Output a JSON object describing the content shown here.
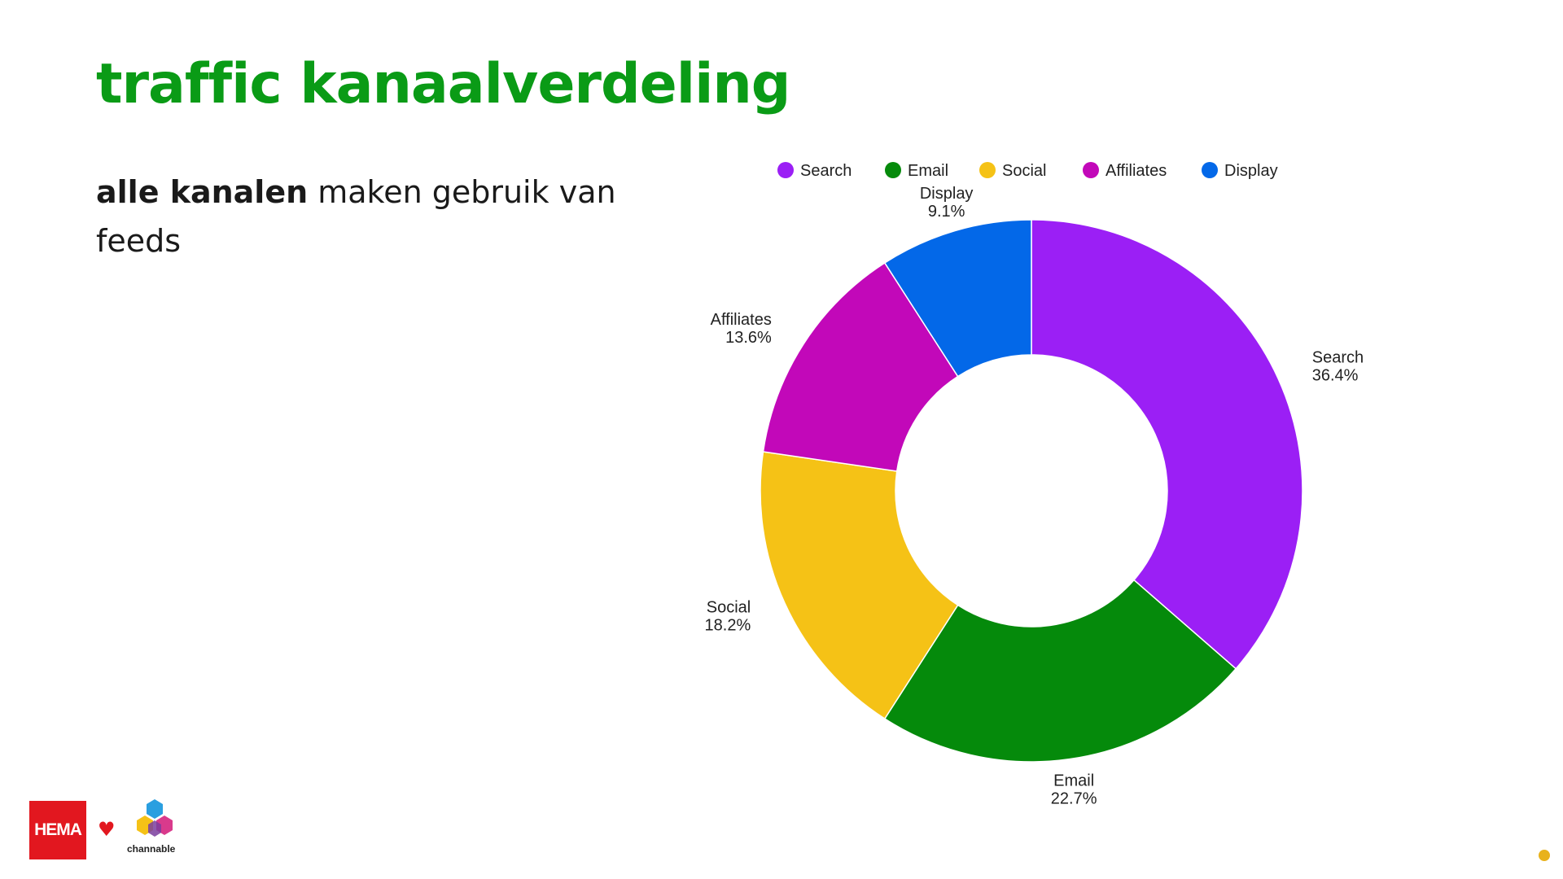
{
  "slide": {
    "title": "traffic kanaalverdeling",
    "subtitle_bold": "alle kanalen",
    "subtitle_rest": " maken gebruik van feeds"
  },
  "logos": {
    "hema": "HEMA",
    "heart": "♥",
    "channable": "channable"
  },
  "colors": {
    "title": "#0a9b16",
    "page_dot": "#e8b21c"
  },
  "chart_data": {
    "type": "pie",
    "donut": true,
    "legend_position": "top",
    "categories": [
      "Search",
      "Email",
      "Social",
      "Affiliates",
      "Display"
    ],
    "values": [
      36.4,
      22.7,
      18.2,
      13.6,
      9.1
    ],
    "labels": [
      "36.4%",
      "22.7%",
      "18.2%",
      "13.6%",
      "9.1%"
    ],
    "colors": [
      "#9b1ff5",
      "#058a0b",
      "#f5c216",
      "#c208b9",
      "#0368e8"
    ]
  }
}
